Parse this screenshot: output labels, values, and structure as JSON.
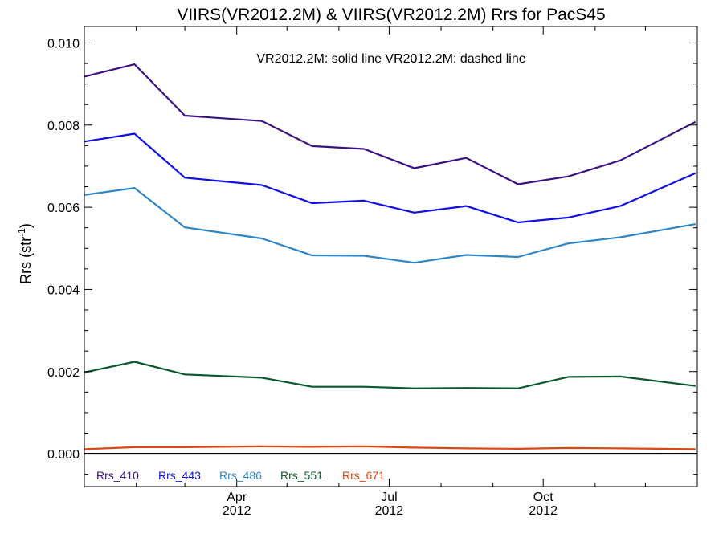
{
  "chart_data": {
    "type": "line",
    "title": "VIIRS(VR2012.2M) & VIIRS(VR2012.2M)  Rrs for PacS45",
    "subtitle": "VR2012.2M: solid line   VR2012.2M: dashed line",
    "ylabel": {
      "main": "Rrs (str",
      "sup": "-1",
      "close": ")"
    },
    "xlabel": "",
    "ylim": [
      -0.0008,
      0.0104
    ],
    "y_ticks": [
      {
        "value": 0.0,
        "label": "0.000"
      },
      {
        "value": 0.002,
        "label": "0.002"
      },
      {
        "value": 0.004,
        "label": "0.004"
      },
      {
        "value": 0.006,
        "label": "0.006"
      },
      {
        "value": 0.008,
        "label": "0.008"
      },
      {
        "value": 0.01,
        "label": "0.010"
      }
    ],
    "xlim": [
      "2012-01-01",
      "2012-12-31"
    ],
    "x_ticks": [
      {
        "date": "2012-04-01",
        "month": "Apr",
        "year": "2012"
      },
      {
        "date": "2012-07-01",
        "month": "Jul",
        "year": "2012"
      },
      {
        "date": "2012-10-01",
        "month": "Oct",
        "year": "2012"
      }
    ],
    "x": [
      "2012-01-01",
      "2012-01-31",
      "2012-03-01",
      "2012-04-16",
      "2012-05-16",
      "2012-06-16",
      "2012-07-16",
      "2012-08-16",
      "2012-09-16",
      "2012-10-16",
      "2012-11-16",
      "2012-12-31"
    ],
    "series": [
      {
        "name": "Rrs_410",
        "color": "#3a1282",
        "values": [
          0.00918,
          0.00948,
          0.00823,
          0.0081,
          0.00749,
          0.00742,
          0.00695,
          0.0072,
          0.00656,
          0.00675,
          0.00714,
          0.00808
        ]
      },
      {
        "name": "Rrs_443",
        "color": "#1010e6",
        "values": [
          0.0076,
          0.00779,
          0.00672,
          0.00654,
          0.0061,
          0.00616,
          0.00587,
          0.00603,
          0.00563,
          0.00575,
          0.00603,
          0.00683
        ]
      },
      {
        "name": "Rrs_486",
        "color": "#2f86c6",
        "values": [
          0.0063,
          0.00647,
          0.00551,
          0.00524,
          0.00483,
          0.00482,
          0.00465,
          0.00484,
          0.00479,
          0.00512,
          0.00527,
          0.00559
        ]
      },
      {
        "name": "Rrs_551",
        "color": "#0b5a2d",
        "values": [
          0.00198,
          0.00224,
          0.00193,
          0.00185,
          0.00163,
          0.00163,
          0.00159,
          0.0016,
          0.00159,
          0.00187,
          0.00188,
          0.00165
        ]
      },
      {
        "name": "Rrs_671",
        "color": "#dd4712",
        "values": [
          0.00011,
          0.00016,
          0.00016,
          0.00018,
          0.00017,
          0.00018,
          0.00015,
          0.00013,
          0.00012,
          0.00014,
          0.00013,
          0.00011
        ]
      }
    ],
    "zero_line": {
      "value": 0.0,
      "color": "#000000"
    },
    "grid": false,
    "legend": "bottom-left"
  }
}
